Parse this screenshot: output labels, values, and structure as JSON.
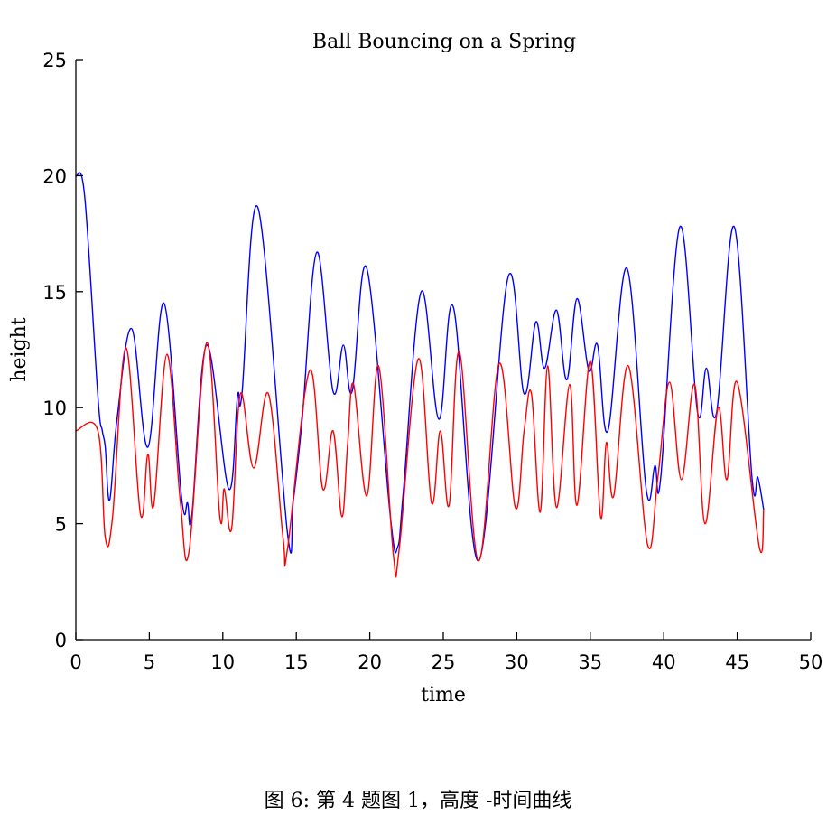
{
  "chart_data": {
    "type": "line",
    "title": "Ball Bouncing on a Spring",
    "xlabel": "time",
    "ylabel": "height",
    "xlim": [
      0,
      50
    ],
    "ylim": [
      0,
      25
    ],
    "xticks": [
      0,
      5,
      10,
      15,
      20,
      25,
      30,
      35,
      40,
      45,
      50
    ],
    "yticks": [
      0,
      5,
      10,
      15,
      20,
      25
    ],
    "grid": false,
    "series": [
      {
        "color": "#0000ff",
        "points": [
          [
            0,
            20
          ],
          [
            0.6,
            19.1
          ],
          [
            1.5,
            10.5
          ],
          [
            1.8,
            9
          ],
          [
            2.0,
            8.3
          ],
          [
            2.3,
            6.0
          ],
          [
            2.8,
            9.5
          ],
          [
            3.8,
            13.4
          ],
          [
            4.9,
            8.3
          ],
          [
            6.0,
            14.5
          ],
          [
            7.2,
            6.1
          ],
          [
            7.6,
            5.9
          ],
          [
            7.9,
            5.4
          ],
          [
            8.9,
            12.7
          ],
          [
            10.4,
            6.5
          ],
          [
            11.0,
            10.5
          ],
          [
            11.3,
            10.6
          ],
          [
            12.4,
            18.6
          ],
          [
            14.4,
            4.6
          ],
          [
            14.8,
            6.0
          ],
          [
            15.4,
            9.5
          ],
          [
            16.4,
            16.7
          ],
          [
            17.5,
            10.7
          ],
          [
            18.2,
            12.7
          ],
          [
            18.8,
            10.7
          ],
          [
            19.8,
            16.0
          ],
          [
            21.4,
            5.3
          ],
          [
            21.9,
            4.0
          ],
          [
            22.3,
            6.5
          ],
          [
            23.5,
            15.0
          ],
          [
            24.7,
            9.5
          ],
          [
            25.7,
            14.3
          ],
          [
            27.4,
            3.4
          ],
          [
            29.4,
            15.6
          ],
          [
            30.5,
            10.6
          ],
          [
            31.3,
            13.7
          ],
          [
            31.9,
            11.7
          ],
          [
            32.7,
            14.2
          ],
          [
            33.4,
            11.2
          ],
          [
            34.1,
            14.7
          ],
          [
            34.9,
            11.6
          ],
          [
            35.5,
            12.7
          ],
          [
            36.2,
            9.0
          ],
          [
            37.5,
            16.0
          ],
          [
            38.8,
            6.5
          ],
          [
            39.4,
            7.5
          ],
          [
            39.8,
            7.0
          ],
          [
            41.1,
            17.8
          ],
          [
            42.3,
            9.8
          ],
          [
            42.9,
            11.7
          ],
          [
            43.6,
            9.8
          ],
          [
            44.8,
            17.8
          ],
          [
            46.0,
            7.0
          ],
          [
            46.4,
            7.0
          ],
          [
            46.8,
            5.6
          ]
        ]
      },
      {
        "color": "#ff0000",
        "points": [
          [
            0,
            9
          ],
          [
            1.5,
            9
          ],
          [
            2.0,
            4.4
          ],
          [
            2.5,
            5.3
          ],
          [
            3.4,
            12.6
          ],
          [
            4.4,
            5.4
          ],
          [
            4.9,
            8.0
          ],
          [
            5.3,
            5.8
          ],
          [
            6.2,
            12.3
          ],
          [
            7.1,
            6.0
          ],
          [
            7.7,
            3.8
          ],
          [
            8.9,
            12.8
          ],
          [
            9.8,
            5.3
          ],
          [
            10.1,
            6.5
          ],
          [
            10.6,
            4.8
          ],
          [
            11.2,
            10.6
          ],
          [
            12.1,
            7.4
          ],
          [
            13.1,
            10.6
          ],
          [
            14.1,
            4.4
          ],
          [
            14.4,
            3.9
          ],
          [
            15.9,
            11.6
          ],
          [
            16.8,
            6.5
          ],
          [
            17.5,
            9.0
          ],
          [
            18.1,
            5.3
          ],
          [
            18.5,
            8.5
          ],
          [
            18.9,
            11.0
          ],
          [
            19.8,
            6.2
          ],
          [
            20.6,
            11.8
          ],
          [
            21.6,
            3.7
          ],
          [
            22.0,
            3.9
          ],
          [
            23.3,
            12.1
          ],
          [
            24.2,
            5.9
          ],
          [
            24.8,
            9.0
          ],
          [
            25.4,
            5.8
          ],
          [
            26.1,
            12.4
          ],
          [
            27.4,
            3.4
          ],
          [
            28.8,
            11.9
          ],
          [
            29.9,
            5.7
          ],
          [
            30.5,
            9.0
          ],
          [
            31.0,
            10.6
          ],
          [
            31.6,
            5.5
          ],
          [
            32.1,
            11.8
          ],
          [
            32.7,
            5.7
          ],
          [
            33.6,
            11.0
          ],
          [
            34.1,
            5.8
          ],
          [
            35.0,
            12.0
          ],
          [
            35.7,
            5.3
          ],
          [
            36.1,
            8.5
          ],
          [
            36.6,
            6.2
          ],
          [
            37.6,
            11.8
          ],
          [
            38.9,
            4.1
          ],
          [
            39.6,
            7.0
          ],
          [
            40.4,
            11.1
          ],
          [
            41.2,
            6.9
          ],
          [
            42.1,
            11.0
          ],
          [
            42.8,
            5.0
          ],
          [
            43.7,
            10.0
          ],
          [
            44.3,
            6.9
          ],
          [
            45.0,
            11.1
          ],
          [
            46.5,
            4.0
          ],
          [
            46.8,
            5.6
          ]
        ]
      }
    ]
  },
  "caption": "图 6: 第 4 题图 1，高度 -时间曲线"
}
